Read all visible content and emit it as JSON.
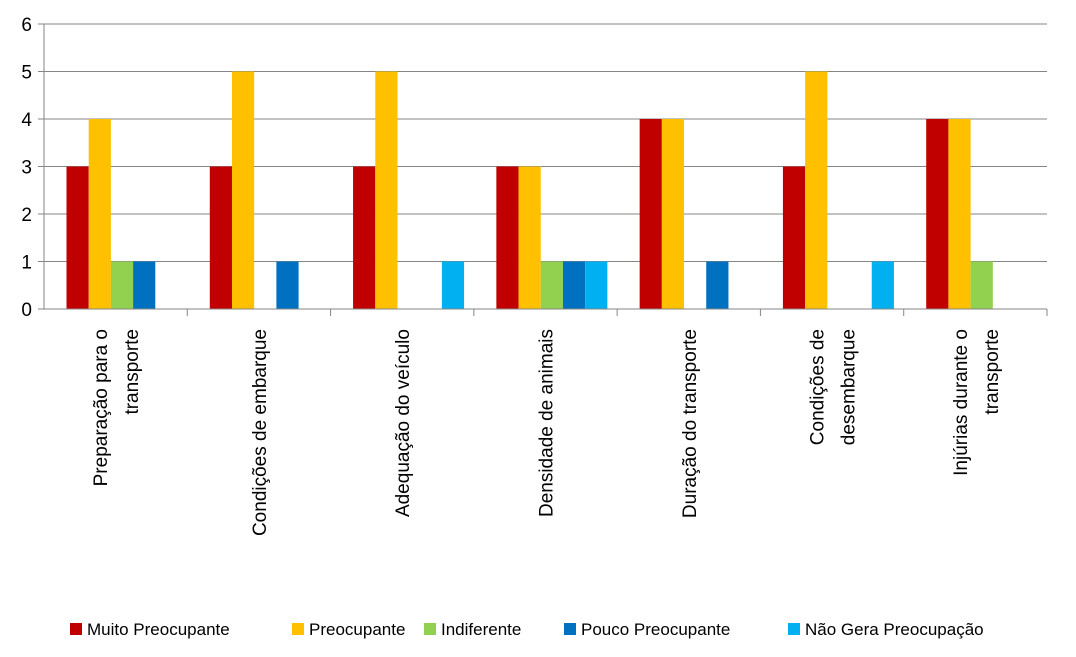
{
  "chart_data": {
    "type": "bar",
    "title": "",
    "xlabel": "",
    "ylabel": "",
    "ylim": [
      0,
      6
    ],
    "yticks": [
      0,
      1,
      2,
      3,
      4,
      5,
      6
    ],
    "grid": true,
    "legend_position": "bottom",
    "categories": [
      [
        "Preparação para o",
        "transporte"
      ],
      [
        "Condições de embarque"
      ],
      [
        "Adequação do veículo"
      ],
      [
        "Densidade de animais"
      ],
      [
        "Duração do transporte"
      ],
      [
        "Condições de",
        "desembarque"
      ],
      [
        "Injúrias durante o",
        "transporte"
      ]
    ],
    "series": [
      {
        "name": "Muito Preocupante",
        "color": "#C00000",
        "values": [
          3,
          3,
          3,
          3,
          4,
          3,
          4
        ]
      },
      {
        "name": "Preocupante",
        "color": "#FFC000",
        "values": [
          4,
          5,
          5,
          3,
          4,
          5,
          4
        ]
      },
      {
        "name": "Indiferente",
        "color": "#92D050",
        "values": [
          1,
          0,
          0,
          1,
          0,
          0,
          1
        ]
      },
      {
        "name": "Pouco Preocupante",
        "color": "#0070C0",
        "values": [
          1,
          1,
          0,
          1,
          1,
          0,
          0
        ]
      },
      {
        "name": "Não Gera Preocupação",
        "color": "#00B0F0",
        "values": [
          0,
          0,
          1,
          1,
          0,
          1,
          0
        ]
      }
    ]
  }
}
